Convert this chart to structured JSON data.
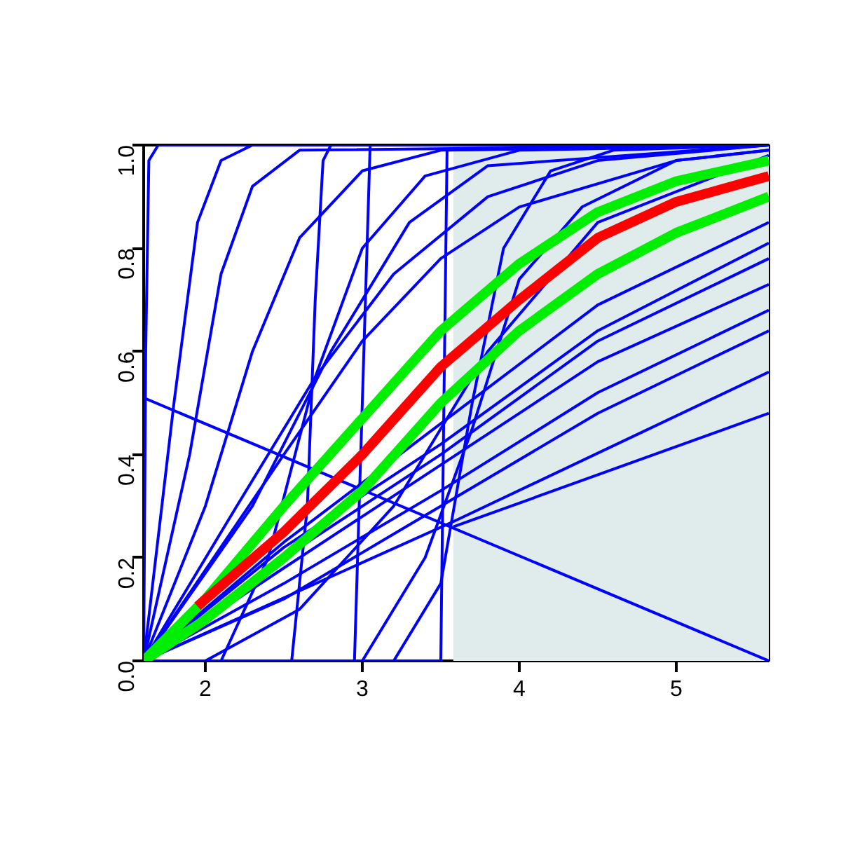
{
  "chart_data": {
    "type": "line",
    "xlim": [
      1.607,
      5.59
    ],
    "ylim": [
      0,
      1
    ],
    "xticks": [
      2,
      3,
      4,
      5
    ],
    "yticks": [
      {
        "value": 0,
        "label": "0.0"
      },
      0.2,
      0.4,
      0.6,
      0.8,
      {
        "value": 1,
        "label": "1.0"
      }
    ],
    "bands": [
      {
        "axis": "x",
        "from": 3.58,
        "to": 5.59,
        "color": "#e0ecec"
      }
    ],
    "series": [
      {
        "color": "#0000ff",
        "x": [
          1.607,
          1.62,
          1.64,
          1.7,
          5.59
        ],
        "values": [
          0,
          0.6,
          0.97,
          1.0,
          1.0
        ]
      },
      {
        "color": "#0000ff",
        "x": [
          1.607,
          1.8,
          1.95,
          2.1,
          2.3,
          5.59
        ],
        "values": [
          0,
          0.5,
          0.85,
          0.97,
          1.0,
          1.0
        ]
      },
      {
        "color": "#0000ff",
        "x": [
          1.607,
          1.9,
          2.1,
          2.3,
          2.6,
          5.59
        ],
        "values": [
          0,
          0.4,
          0.75,
          0.92,
          0.99,
          1.0
        ]
      },
      {
        "color": "#0000ff",
        "x": [
          1.607,
          2.0,
          2.3,
          2.6,
          3.0,
          3.5,
          5.59
        ],
        "values": [
          0,
          0.3,
          0.6,
          0.82,
          0.95,
          0.99,
          1.0
        ]
      },
      {
        "color": "#0000ff",
        "x": [
          1.607,
          2.2,
          2.7,
          3.2,
          3.8,
          4.5,
          5.59
        ],
        "values": [
          0,
          0.3,
          0.55,
          0.75,
          0.9,
          0.97,
          1.0
        ]
      },
      {
        "color": "#0000ff",
        "x": [
          1.607,
          2.5,
          3.0,
          3.5,
          4.0,
          5.0,
          5.59
        ],
        "values": [
          0,
          0.4,
          0.62,
          0.78,
          0.88,
          0.97,
          0.99
        ]
      },
      {
        "color": "#0000ff",
        "x": [
          2.55,
          2.65,
          2.7,
          2.75,
          2.8,
          5.59
        ],
        "values": [
          0,
          0.3,
          0.7,
          0.97,
          1.0,
          1.0
        ]
      },
      {
        "color": "#0000ff",
        "x": [
          2.95,
          3.0,
          3.05,
          5.59
        ],
        "values": [
          0,
          0.5,
          1.0,
          1.0
        ]
      },
      {
        "color": "#0000ff",
        "x": [
          1.607,
          3.5,
          3.52,
          3.54,
          5.59
        ],
        "values": [
          0,
          0,
          0.5,
          0.99,
          1.0
        ]
      },
      {
        "color": "#0000ff",
        "x": [
          3.2,
          3.5,
          3.7,
          3.9,
          4.2,
          4.6,
          5.59
        ],
        "values": [
          0,
          0.15,
          0.5,
          0.8,
          0.95,
          0.99,
          1.0
        ]
      },
      {
        "color": "#0000ff",
        "x": [
          3.0,
          3.4,
          3.7,
          4.0,
          4.4,
          5.0,
          5.59
        ],
        "values": [
          0,
          0.2,
          0.45,
          0.74,
          0.88,
          0.97,
          0.99
        ]
      },
      {
        "color": "#0000ff",
        "x": [
          1.607,
          5.59
        ],
        "values": [
          0.51,
          0
        ]
      },
      {
        "color": "#0000ff",
        "x": [
          3.58,
          5.59
        ],
        "values": [
          0.26,
          0.48
        ]
      },
      {
        "color": "#0000ff",
        "x": [
          1.607,
          3.58,
          5.59
        ],
        "values": [
          0,
          0.27,
          0.56
        ]
      },
      {
        "color": "#0000ff",
        "x": [
          1.607,
          2.5,
          3.5,
          4.5,
          5.59
        ],
        "values": [
          0,
          0.15,
          0.33,
          0.52,
          0.68
        ]
      },
      {
        "color": "#0000ff",
        "x": [
          1.607,
          2.5,
          3.5,
          4.5,
          5.59
        ],
        "values": [
          0,
          0.18,
          0.38,
          0.58,
          0.73
        ]
      },
      {
        "color": "#0000ff",
        "x": [
          1.607,
          2.5,
          3.5,
          4.5,
          5.59
        ],
        "values": [
          0,
          0.2,
          0.4,
          0.62,
          0.78
        ]
      },
      {
        "color": "#0000ff",
        "x": [
          1.607,
          2.5,
          3.5,
          4.5,
          5.59
        ],
        "values": [
          0,
          0.22,
          0.42,
          0.64,
          0.81
        ]
      },
      {
        "color": "#0000ff",
        "x": [
          1.607,
          2.5,
          3.5,
          4.5,
          5.59
        ],
        "values": [
          0,
          0.12,
          0.3,
          0.48,
          0.64
        ]
      },
      {
        "color": "#0000ff",
        "x": [
          1.607,
          2.5,
          3.5,
          4.5,
          5.59
        ],
        "values": [
          0,
          0.23,
          0.46,
          0.69,
          0.85
        ]
      },
      {
        "color": "#0000ff",
        "x": [
          2.0,
          2.6,
          3.2,
          3.8,
          4.5,
          5.59
        ],
        "values": [
          0,
          0.1,
          0.3,
          0.6,
          0.85,
          0.98
        ]
      },
      {
        "color": "#0000ff",
        "x": [
          1.607,
          2.3,
          2.8,
          3.3,
          3.8,
          5.59
        ],
        "values": [
          0,
          0.3,
          0.6,
          0.85,
          0.96,
          1.0
        ]
      },
      {
        "color": "#0000ff",
        "x": [
          2.1,
          2.4,
          2.7,
          3.0,
          3.4,
          4.0,
          5.59
        ],
        "values": [
          0,
          0.2,
          0.55,
          0.8,
          0.94,
          0.99,
          1.0
        ]
      },
      {
        "color": "#00ee00",
        "x": [
          1.607,
          2.0,
          2.5,
          3.0,
          3.5,
          4.0,
          4.5,
          5.0,
          5.59
        ],
        "values": [
          0,
          0.12,
          0.3,
          0.47,
          0.64,
          0.77,
          0.87,
          0.93,
          0.97
        ]
      },
      {
        "color": "#00ee00",
        "x": [
          1.607,
          2.0,
          2.5,
          3.0,
          3.5,
          4.0,
          4.5,
          5.0,
          5.59
        ],
        "values": [
          0,
          0.08,
          0.2,
          0.33,
          0.5,
          0.64,
          0.75,
          0.83,
          0.9
        ]
      },
      {
        "color": "#ff0000",
        "x": [
          1.95,
          2.5,
          3.0,
          3.5,
          4.0,
          4.5,
          5.0,
          5.59
        ],
        "values": [
          0.106,
          0.25,
          0.4,
          0.57,
          0.7,
          0.82,
          0.89,
          0.94
        ]
      }
    ]
  }
}
